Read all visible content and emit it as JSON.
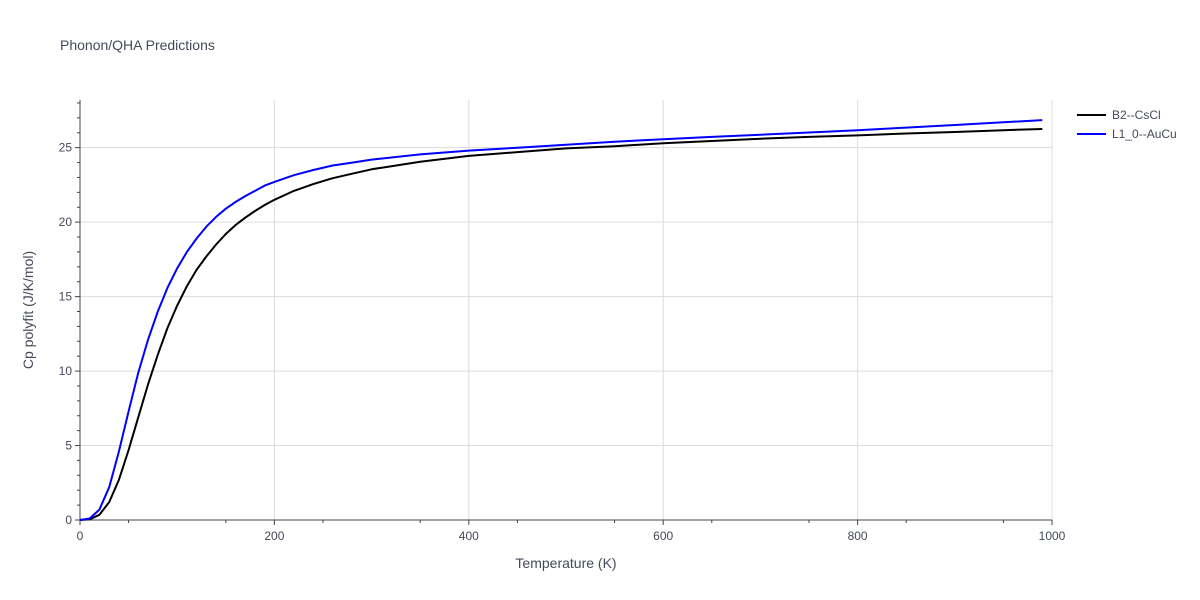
{
  "chart_data": {
    "type": "line",
    "title": "Phonon/QHA Predictions",
    "xlabel": "Temperature (K)",
    "ylabel": "Cp polyfit (J/K/mol)",
    "xlim": [
      0,
      1000
    ],
    "ylim": [
      0,
      28.2
    ],
    "xticks": [
      0,
      200,
      400,
      600,
      800,
      1000
    ],
    "xtick_labels": [
      "0",
      "200",
      "400",
      "600",
      "800",
      "1000"
    ],
    "yticks": [
      0,
      5,
      10,
      15,
      20,
      25
    ],
    "ytick_labels": [
      "0",
      "5",
      "10",
      "15",
      "20",
      "25"
    ],
    "grid": true,
    "legend_position": "top-right",
    "series": [
      {
        "name": "B2--CsCl",
        "color": "#000000",
        "x": [
          0,
          10,
          20,
          30,
          40,
          50,
          60,
          70,
          80,
          90,
          100,
          110,
          120,
          130,
          140,
          150,
          160,
          170,
          180,
          190,
          200,
          220,
          240,
          260,
          280,
          300,
          350,
          400,
          450,
          500,
          550,
          600,
          650,
          700,
          750,
          800,
          850,
          900,
          950,
          990
        ],
        "y": [
          0,
          0.05,
          0.35,
          1.2,
          2.7,
          4.7,
          6.9,
          9.1,
          11.1,
          12.9,
          14.4,
          15.7,
          16.8,
          17.7,
          18.5,
          19.2,
          19.8,
          20.3,
          20.75,
          21.15,
          21.5,
          22.1,
          22.55,
          22.95,
          23.25,
          23.55,
          24.05,
          24.45,
          24.7,
          24.95,
          25.1,
          25.3,
          25.45,
          25.6,
          25.72,
          25.82,
          25.95,
          26.05,
          26.17,
          26.25
        ]
      },
      {
        "name": "L1_0--AuCu",
        "color": "#0000ff",
        "x": [
          0,
          10,
          20,
          30,
          40,
          50,
          60,
          70,
          80,
          90,
          100,
          110,
          120,
          130,
          140,
          150,
          160,
          170,
          180,
          190,
          200,
          220,
          240,
          260,
          280,
          300,
          350,
          400,
          450,
          500,
          550,
          600,
          650,
          700,
          750,
          800,
          850,
          900,
          950,
          990
        ],
        "y": [
          0,
          0.1,
          0.7,
          2.2,
          4.6,
          7.3,
          9.9,
          12.1,
          14.0,
          15.6,
          16.9,
          18.0,
          18.9,
          19.7,
          20.35,
          20.9,
          21.35,
          21.75,
          22.1,
          22.45,
          22.7,
          23.15,
          23.5,
          23.8,
          24.0,
          24.2,
          24.55,
          24.8,
          25.0,
          25.2,
          25.4,
          25.57,
          25.72,
          25.87,
          26.02,
          26.17,
          26.35,
          26.52,
          26.7,
          26.85
        ]
      }
    ]
  }
}
